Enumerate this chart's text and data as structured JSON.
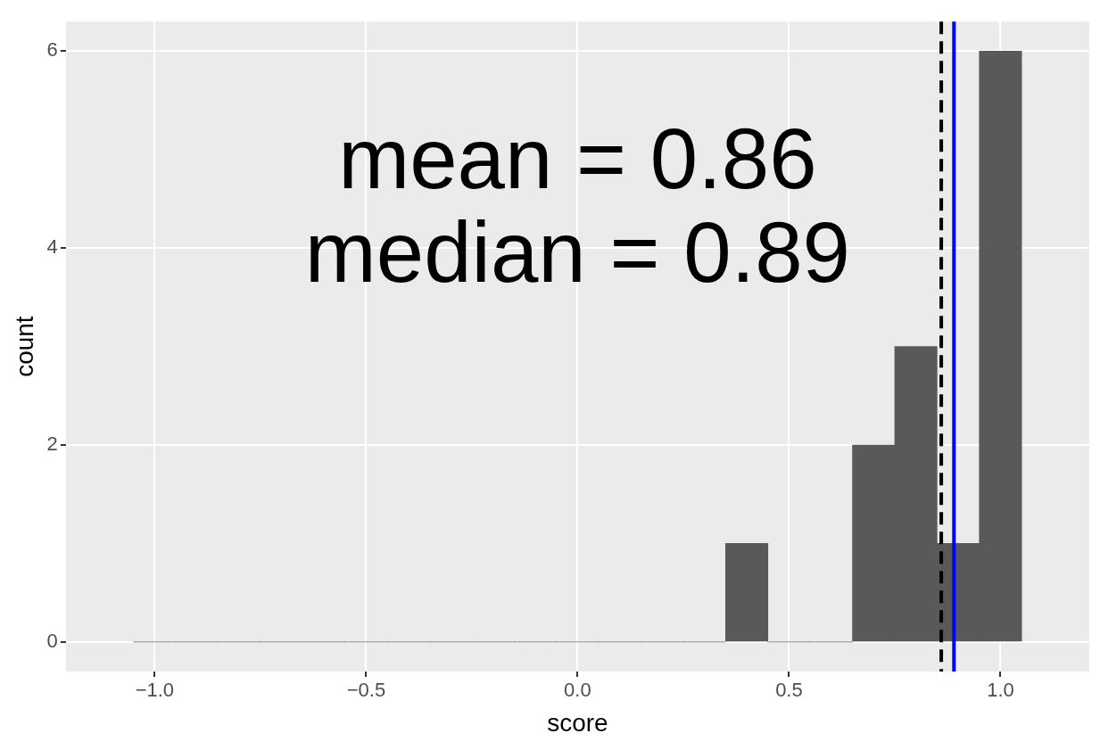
{
  "chart_data": {
    "type": "histogram",
    "xlabel": "score",
    "ylabel": "count",
    "bins": [
      -1.05,
      -0.95,
      -0.85,
      -0.75,
      -0.65,
      -0.55,
      -0.45,
      -0.35,
      -0.25,
      -0.15,
      -0.05,
      0.05,
      0.15,
      0.25,
      0.35,
      0.45,
      0.55,
      0.65,
      0.75,
      0.85,
      0.95,
      1.05
    ],
    "values": [
      0,
      0,
      0,
      0,
      0,
      0,
      0,
      0,
      0,
      0,
      0,
      0,
      0,
      0,
      1,
      0,
      0,
      2,
      3,
      1,
      6
    ],
    "color": "#595959",
    "xlim": [
      -1.21,
      1.21
    ],
    "xticks": [
      {
        "value": -1,
        "label": "−1.0"
      },
      {
        "value": -0.5,
        "label": "−0.5"
      },
      {
        "value": 0,
        "label": "0.0"
      },
      {
        "value": 0.5,
        "label": "0.5"
      },
      {
        "value": 1,
        "label": "1.0"
      }
    ],
    "ylim": [
      -0.3,
      6.3
    ],
    "yticks": [
      0,
      2,
      4,
      6
    ],
    "grid": true,
    "ref_lines": [
      {
        "axis": "x",
        "value": 0.86,
        "color": "#000000",
        "line_style": "dashed"
      },
      {
        "axis": "x",
        "value": 0.89,
        "color": "#0000ff",
        "line_style": "solid"
      }
    ],
    "annotations": [
      "mean = 0.86",
      "median = 0.89"
    ]
  }
}
